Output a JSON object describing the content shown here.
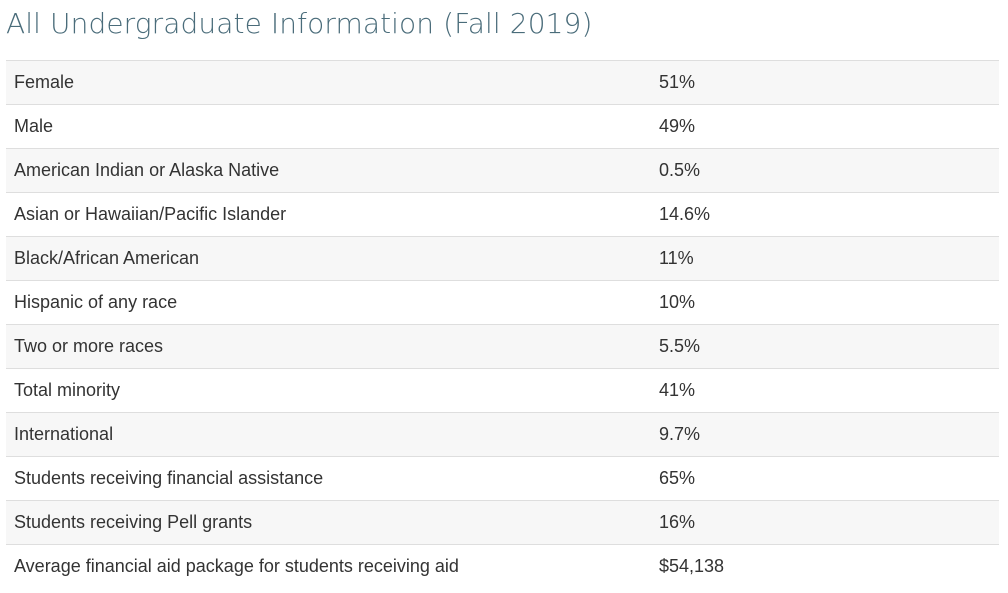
{
  "title": "All Undergraduate Information (Fall 2019)",
  "rows": [
    {
      "label": "Female",
      "value": "51%"
    },
    {
      "label": "Male",
      "value": "49%"
    },
    {
      "label": "American Indian or Alaska Native",
      "value": "0.5%"
    },
    {
      "label": "Asian or Hawaiian/Pacific Islander",
      "value": "14.6%"
    },
    {
      "label": "Black/African American",
      "value": "11%"
    },
    {
      "label": "Hispanic of any race",
      "value": "10%"
    },
    {
      "label": "Two or more races",
      "value": "5.5%"
    },
    {
      "label": "Total minority",
      "value": "41%"
    },
    {
      "label": "International",
      "value": "9.7%"
    },
    {
      "label": "Students receiving financial assistance",
      "value": "65%"
    },
    {
      "label": "Students receiving Pell grants",
      "value": "16%"
    },
    {
      "label": "Average financial aid package for students receiving aid",
      "value": "$54,138"
    }
  ]
}
